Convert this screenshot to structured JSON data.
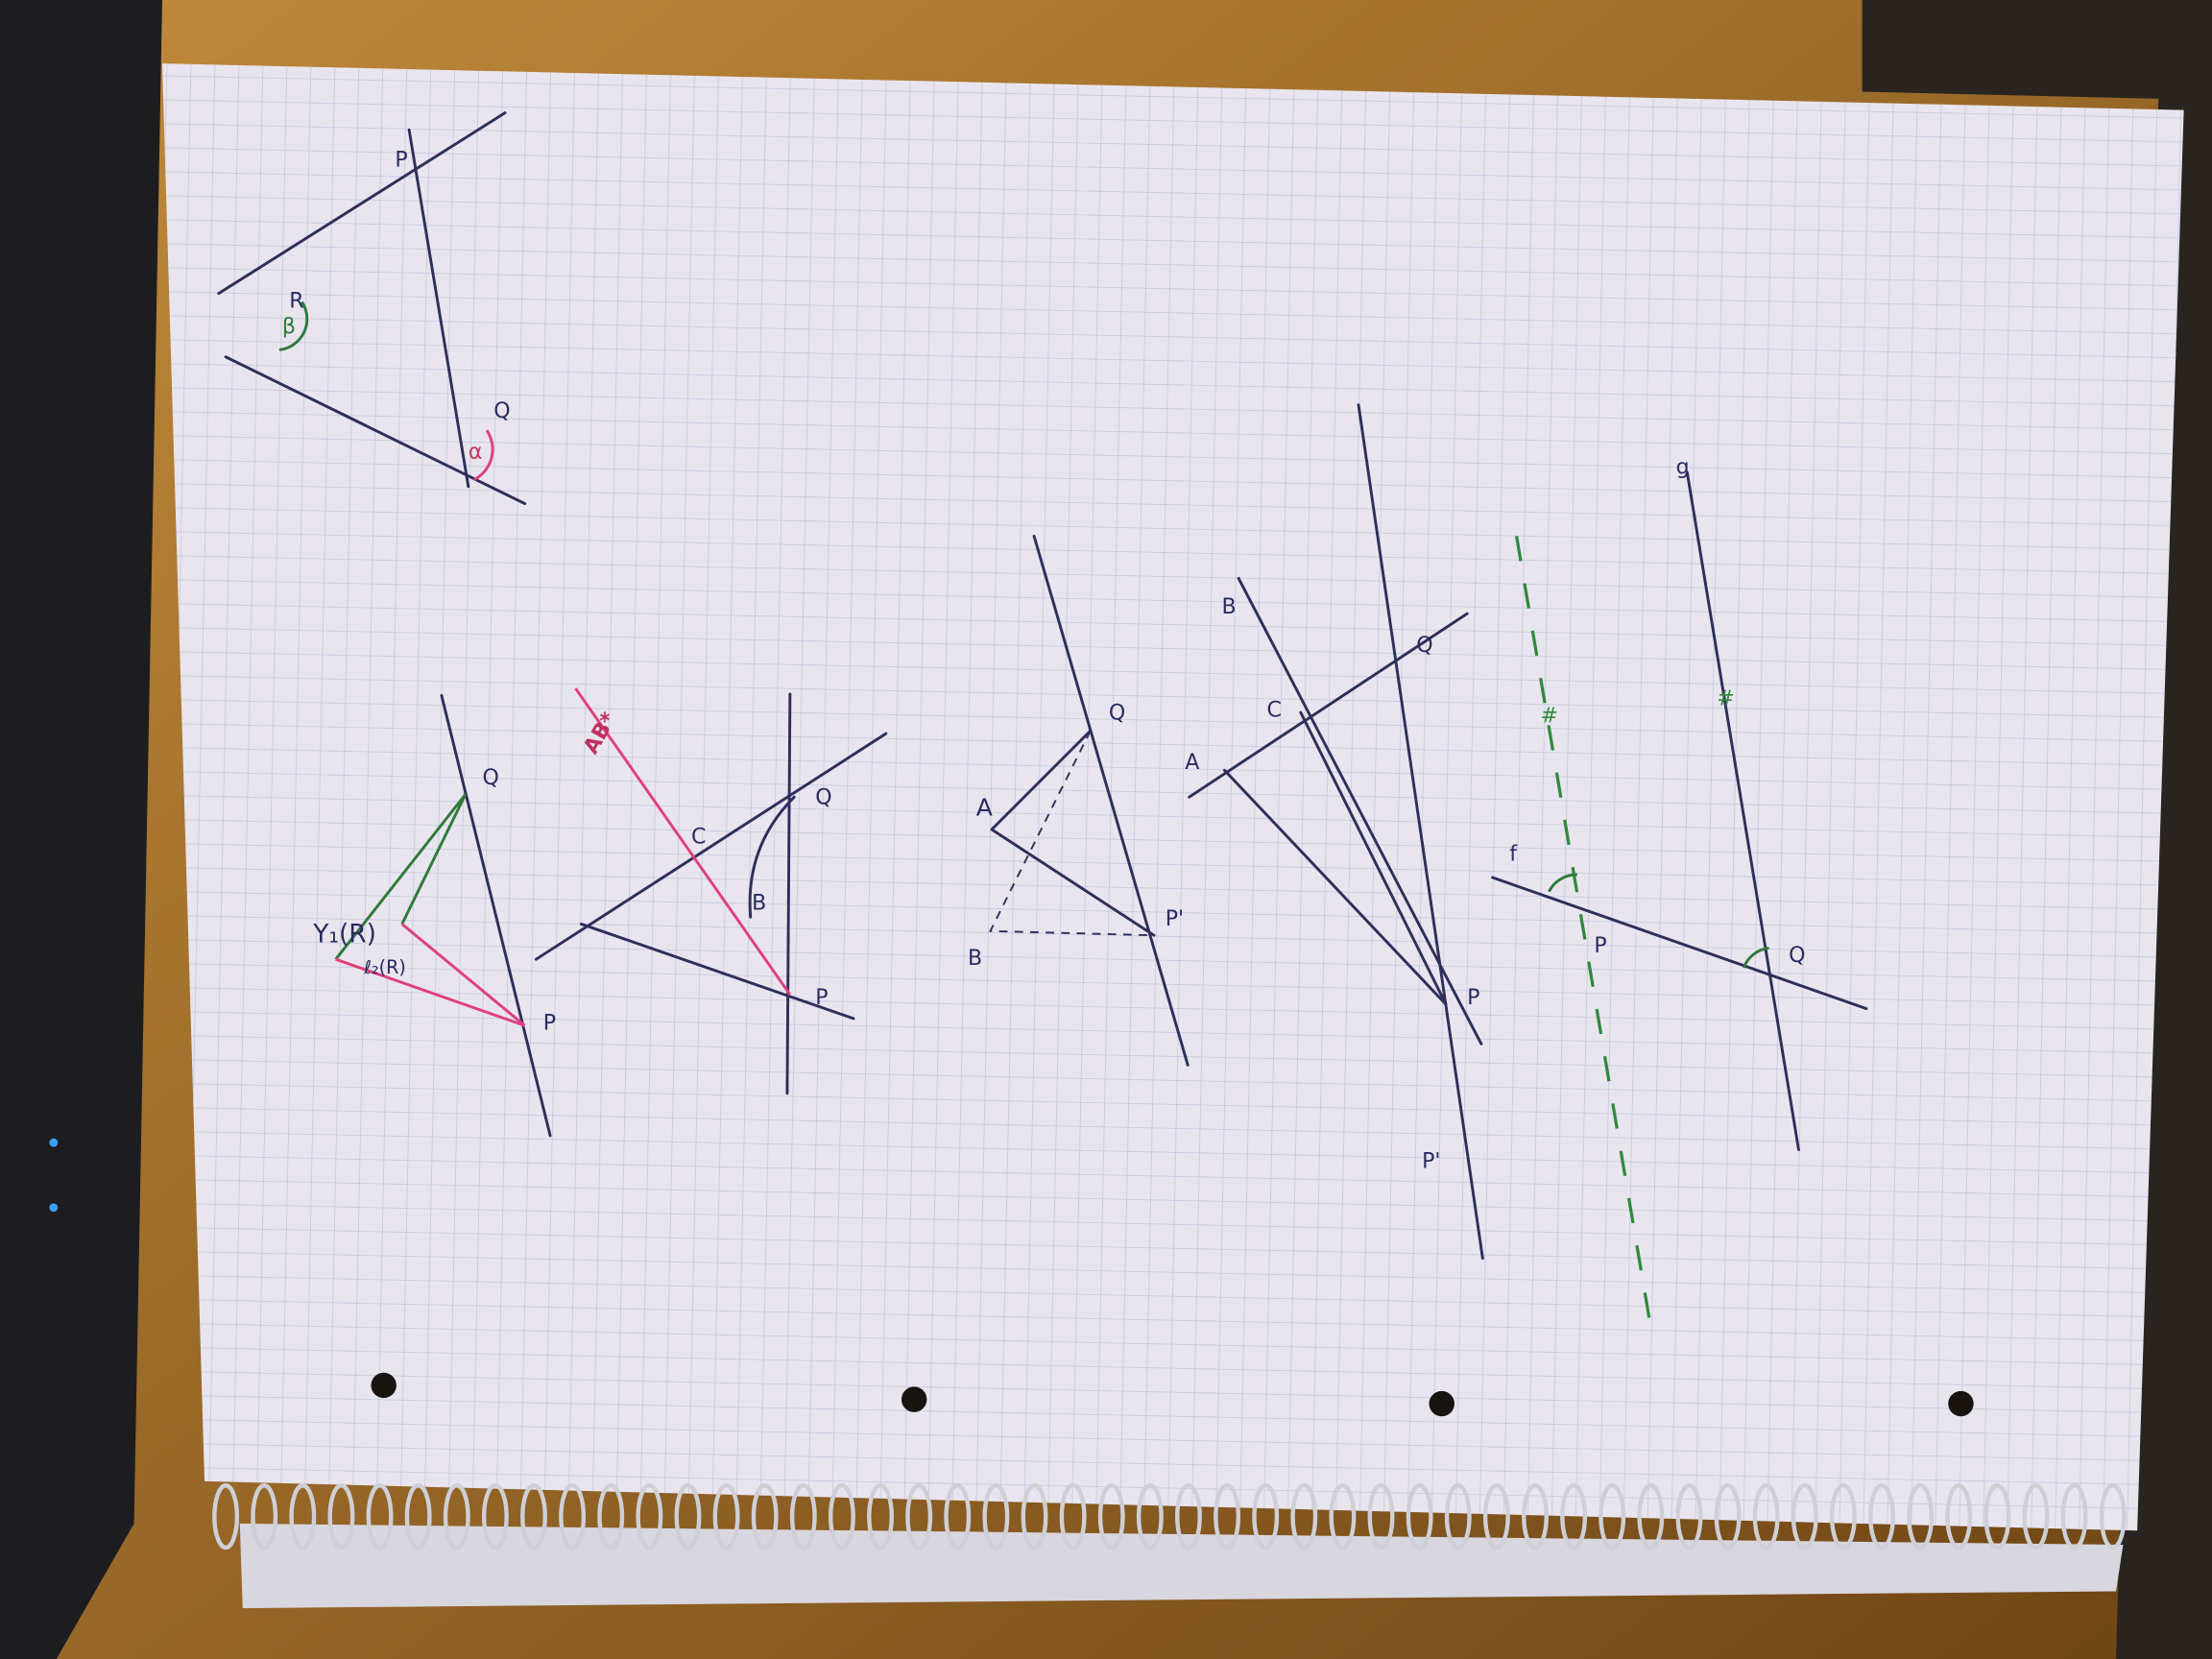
{
  "figures": [
    {
      "labels": [
        "R",
        "P",
        "Q",
        "α",
        "β"
      ]
    },
    {
      "labels": [
        "Y₁(R)",
        "ℓ₂(R)",
        "Q",
        "P"
      ]
    },
    {
      "labels": [
        "AB*",
        "C",
        "B",
        "Q",
        "P"
      ]
    },
    {
      "labels": [
        "A",
        "B",
        "Q",
        "P'"
      ]
    },
    {
      "labels": [
        "A",
        "C",
        "B",
        "Q",
        "P",
        "P'"
      ]
    },
    {
      "labels": [
        "f",
        "g",
        "P",
        "Q",
        "#",
        "#"
      ]
    }
  ]
}
